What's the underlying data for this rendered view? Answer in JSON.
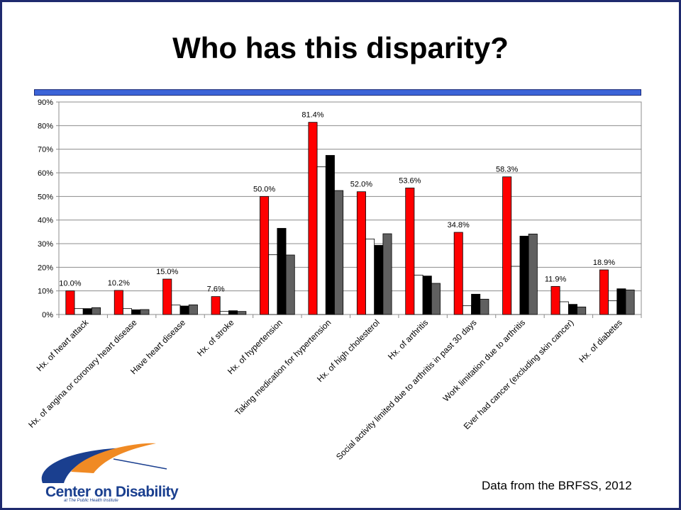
{
  "slide": {
    "title": "Who has this disparity?",
    "source": "Data from the BRFSS, 2012",
    "logo_text": "Center on Disability",
    "logo_sub": "at The Public Health Institute"
  },
  "colors": {
    "series": [
      "#ff0000",
      "#ffffff",
      "#000000",
      "#606060"
    ],
    "title_bar": "#3c64d8"
  },
  "chart_data": {
    "type": "bar",
    "title": "",
    "xlabel": "",
    "ylabel": "",
    "ylim": [
      0,
      90
    ],
    "yticks": [
      0,
      10,
      20,
      30,
      40,
      50,
      60,
      70,
      80,
      90
    ],
    "ytick_labels": [
      "0%",
      "10%",
      "20%",
      "30%",
      "40%",
      "50%",
      "60%",
      "70%",
      "80%",
      "90%"
    ],
    "grid": true,
    "legend": "none",
    "categories": [
      "Hx. of heart attack",
      "Hx. of angina or coronary heart disease",
      "Have heart disease",
      "Hx. of stroke",
      "Hx. of hypertension",
      "Taking medication for hypertension",
      "Hx. of high cholesterol",
      "Hx. of arthritis",
      "Social activity limited due to arthritis in past 30 days",
      "Work limitation due to arthritis",
      "Ever had cancer (excluding skin cancer)",
      "Hx. of diabetes"
    ],
    "series": [
      {
        "values": [
          10.0,
          10.2,
          15.0,
          7.6,
          50.0,
          81.4,
          52.0,
          53.6,
          34.8,
          58.3,
          11.9,
          18.9
        ],
        "data_labels": [
          "10.0%",
          "10.2%",
          "15.0%",
          "7.6%",
          "50.0%",
          "81.4%",
          "52.0%",
          "53.6%",
          "34.8%",
          "58.3%",
          "11.9%",
          "18.9%"
        ]
      },
      {
        "values": [
          2.5,
          2.5,
          4.0,
          1.3,
          25.3,
          62.6,
          32.0,
          16.7,
          3.7,
          20.4,
          5.4,
          5.8
        ]
      },
      {
        "values": [
          2.5,
          2.0,
          3.6,
          1.6,
          36.5,
          67.4,
          29.3,
          16.3,
          8.6,
          33.2,
          4.3,
          10.9
        ]
      },
      {
        "values": [
          2.9,
          2.1,
          4.1,
          1.3,
          25.2,
          52.5,
          34.2,
          13.2,
          6.5,
          34.1,
          3.2,
          10.4
        ]
      }
    ]
  }
}
